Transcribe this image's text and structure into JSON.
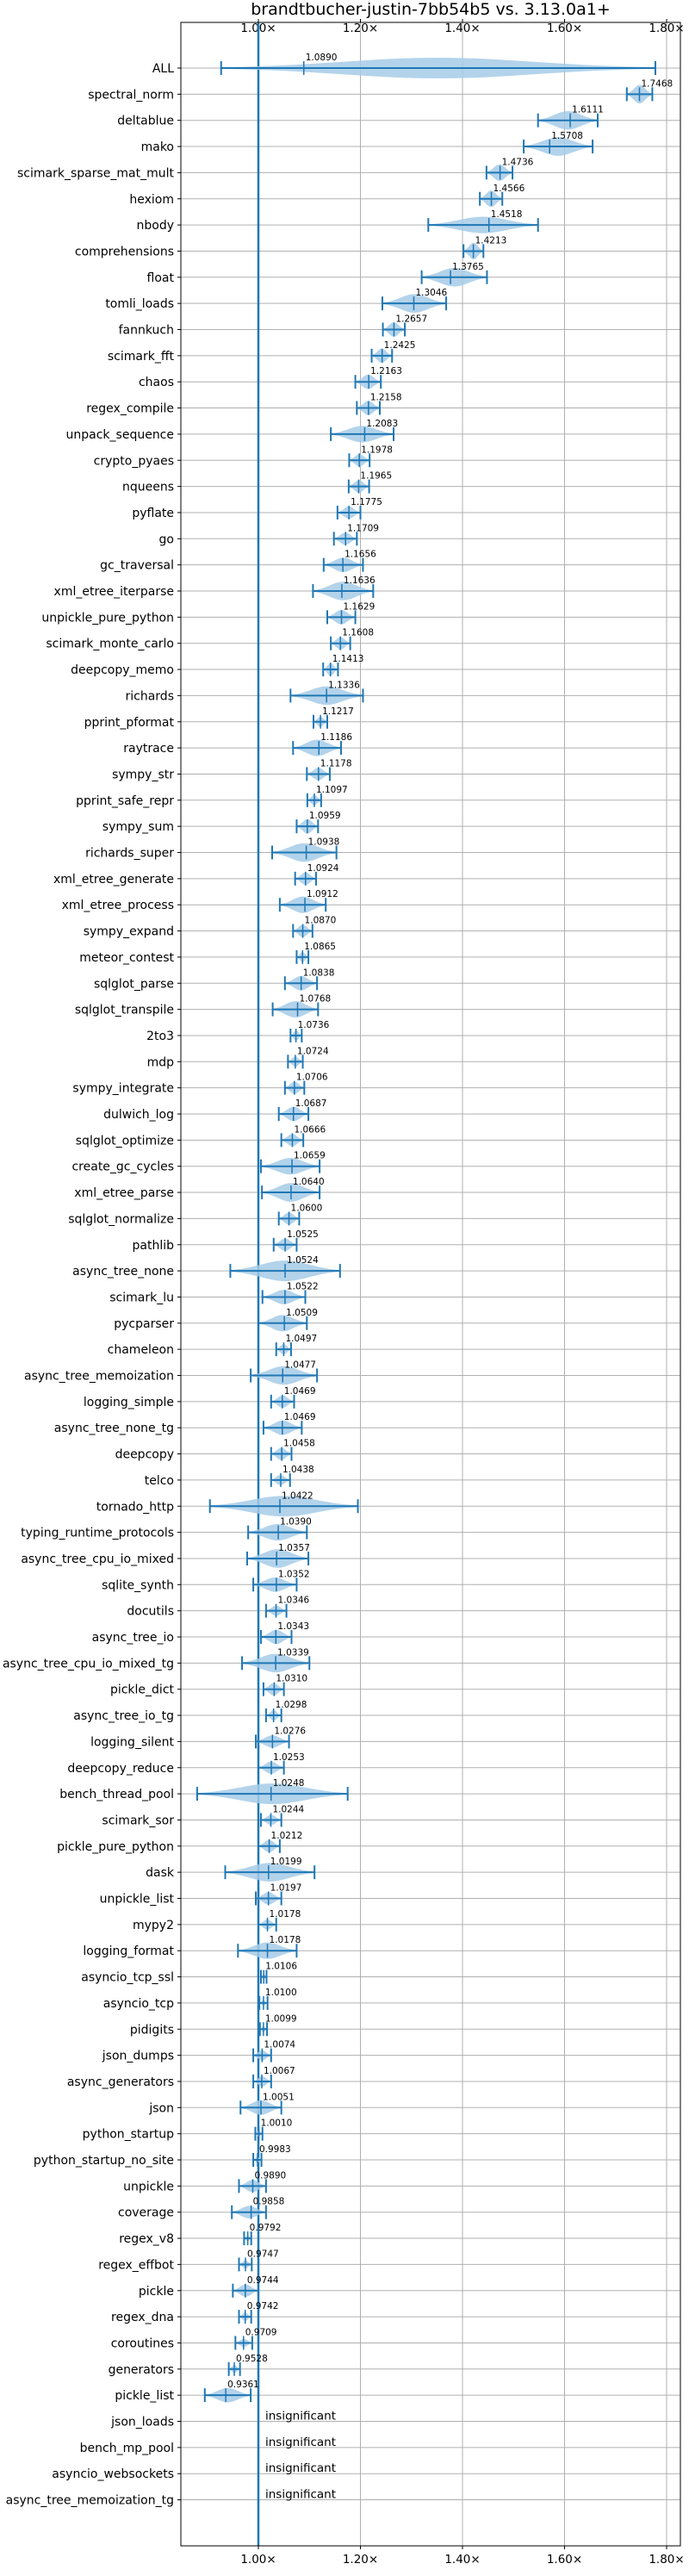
{
  "chart_data": {
    "type": "violin",
    "title": "brandtbucher-justin-7bb54b5 vs. 3.13.0a1+",
    "xlabel": "",
    "ylabel": "",
    "xlim": [
      0.917,
      1.82
    ],
    "xticks": [
      1.0,
      1.2,
      1.4,
      1.6,
      1.8
    ],
    "xtick_labels": [
      "1.00×",
      "1.20×",
      "1.40×",
      "1.60×",
      "1.80×"
    ],
    "reference_line": 1.0,
    "grid": true,
    "colors": {
      "body": "#a6cbe8",
      "line": "#1f77b4",
      "ref": "#1f77b4",
      "grid": "#b0b0b0"
    },
    "insignificant_label": "insignificant",
    "benchmarks": [
      {
        "name": "ALL",
        "value": 1.089,
        "label": "1.0890",
        "lo": 0.927,
        "hi": 1.778,
        "width": 1.0
      },
      {
        "name": "spectral_norm",
        "value": 1.7468,
        "label": "1.7468",
        "lo": 1.722,
        "hi": 1.772,
        "width": 0.9
      },
      {
        "name": "deltablue",
        "value": 1.6111,
        "label": "1.6111",
        "lo": 1.548,
        "hi": 1.665,
        "width": 0.9
      },
      {
        "name": "mako",
        "value": 1.5708,
        "label": "1.5708",
        "lo": 1.52,
        "hi": 1.655,
        "width": 0.9
      },
      {
        "name": "scimark_sparse_mat_mult",
        "value": 1.4736,
        "label": "1.4736",
        "lo": 1.447,
        "hi": 1.498,
        "width": 0.8
      },
      {
        "name": "hexiom",
        "value": 1.4566,
        "label": "1.4566",
        "lo": 1.434,
        "hi": 1.478,
        "width": 0.8
      },
      {
        "name": "nbody",
        "value": 1.4518,
        "label": "1.4518",
        "lo": 1.333,
        "hi": 1.548,
        "width": 0.8
      },
      {
        "name": "comprehensions",
        "value": 1.4213,
        "label": "1.4213",
        "lo": 1.402,
        "hi": 1.441,
        "width": 0.8
      },
      {
        "name": "float",
        "value": 1.3765,
        "label": "1.3765",
        "lo": 1.32,
        "hi": 1.448,
        "width": 0.9
      },
      {
        "name": "tomli_loads",
        "value": 1.3046,
        "label": "1.3046",
        "lo": 1.243,
        "hi": 1.368,
        "width": 0.9
      },
      {
        "name": "fannkuch",
        "value": 1.2657,
        "label": "1.2657",
        "lo": 1.244,
        "hi": 1.287,
        "width": 0.7
      },
      {
        "name": "scimark_fft",
        "value": 1.2425,
        "label": "1.2425",
        "lo": 1.222,
        "hi": 1.262,
        "width": 0.7
      },
      {
        "name": "chaos",
        "value": 1.2163,
        "label": "1.2163",
        "lo": 1.19,
        "hi": 1.24,
        "width": 0.7
      },
      {
        "name": "regex_compile",
        "value": 1.2158,
        "label": "1.2158",
        "lo": 1.193,
        "hi": 1.238,
        "width": 0.7
      },
      {
        "name": "unpack_sequence",
        "value": 1.2083,
        "label": "1.2083",
        "lo": 1.142,
        "hi": 1.265,
        "width": 0.8
      },
      {
        "name": "crypto_pyaes",
        "value": 1.1978,
        "label": "1.1978",
        "lo": 1.178,
        "hi": 1.218,
        "width": 0.6
      },
      {
        "name": "nqueens",
        "value": 1.1965,
        "label": "1.1965",
        "lo": 1.177,
        "hi": 1.217,
        "width": 0.6
      },
      {
        "name": "pyflate",
        "value": 1.1775,
        "label": "1.1775",
        "lo": 1.155,
        "hi": 1.2,
        "width": 0.6
      },
      {
        "name": "go",
        "value": 1.1709,
        "label": "1.1709",
        "lo": 1.148,
        "hi": 1.193,
        "width": 0.6
      },
      {
        "name": "gc_traversal",
        "value": 1.1656,
        "label": "1.1656",
        "lo": 1.128,
        "hi": 1.205,
        "width": 0.7
      },
      {
        "name": "xml_etree_iterparse",
        "value": 1.1636,
        "label": "1.1636",
        "lo": 1.107,
        "hi": 1.225,
        "width": 0.9
      },
      {
        "name": "unpickle_pure_python",
        "value": 1.1629,
        "label": "1.1629",
        "lo": 1.135,
        "hi": 1.19,
        "width": 0.7
      },
      {
        "name": "scimark_monte_carlo",
        "value": 1.1608,
        "label": "1.1608",
        "lo": 1.142,
        "hi": 1.18,
        "width": 0.6
      },
      {
        "name": "deepcopy_memo",
        "value": 1.1413,
        "label": "1.1413",
        "lo": 1.127,
        "hi": 1.156,
        "width": 0.6
      },
      {
        "name": "richards",
        "value": 1.1336,
        "label": "1.1336",
        "lo": 1.063,
        "hi": 1.205,
        "width": 0.9
      },
      {
        "name": "pprint_pformat",
        "value": 1.1217,
        "label": "1.1217",
        "lo": 1.108,
        "hi": 1.135,
        "width": 0.5
      },
      {
        "name": "raytrace",
        "value": 1.1186,
        "label": "1.1186",
        "lo": 1.068,
        "hi": 1.162,
        "width": 0.8
      },
      {
        "name": "sympy_str",
        "value": 1.1178,
        "label": "1.1178",
        "lo": 1.095,
        "hi": 1.14,
        "width": 0.6
      },
      {
        "name": "pprint_safe_repr",
        "value": 1.1097,
        "label": "1.1097",
        "lo": 1.096,
        "hi": 1.123,
        "width": 0.5
      },
      {
        "name": "sympy_sum",
        "value": 1.0959,
        "label": "1.0959",
        "lo": 1.075,
        "hi": 1.117,
        "width": 0.7
      },
      {
        "name": "richards_super",
        "value": 1.0938,
        "label": "1.0938",
        "lo": 1.027,
        "hi": 1.153,
        "width": 0.9
      },
      {
        "name": "xml_etree_generate",
        "value": 1.0924,
        "label": "1.0924",
        "lo": 1.072,
        "hi": 1.113,
        "width": 0.6
      },
      {
        "name": "xml_etree_process",
        "value": 1.0912,
        "label": "1.0912",
        "lo": 1.042,
        "hi": 1.132,
        "width": 0.8
      },
      {
        "name": "sympy_expand",
        "value": 1.087,
        "label": "1.0870",
        "lo": 1.068,
        "hi": 1.106,
        "width": 0.6
      },
      {
        "name": "meteor_contest",
        "value": 1.0865,
        "label": "1.0865",
        "lo": 1.075,
        "hi": 1.098,
        "width": 0.5
      },
      {
        "name": "sqlglot_parse",
        "value": 1.0838,
        "label": "1.0838",
        "lo": 1.052,
        "hi": 1.115,
        "width": 0.7
      },
      {
        "name": "sqlglot_transpile",
        "value": 1.0768,
        "label": "1.0768",
        "lo": 1.028,
        "hi": 1.117,
        "width": 0.8
      },
      {
        "name": "2to3",
        "value": 1.0736,
        "label": "1.0736",
        "lo": 1.063,
        "hi": 1.085,
        "width": 0.5
      },
      {
        "name": "mdp",
        "value": 1.0724,
        "label": "1.0724",
        "lo": 1.058,
        "hi": 1.087,
        "width": 0.5
      },
      {
        "name": "sympy_integrate",
        "value": 1.0706,
        "label": "1.0706",
        "lo": 1.052,
        "hi": 1.09,
        "width": 0.6
      },
      {
        "name": "dulwich_log",
        "value": 1.0687,
        "label": "1.0687",
        "lo": 1.04,
        "hi": 1.098,
        "width": 0.7
      },
      {
        "name": "sqlglot_optimize",
        "value": 1.0666,
        "label": "1.0666",
        "lo": 1.045,
        "hi": 1.088,
        "width": 0.6
      },
      {
        "name": "create_gc_cycles",
        "value": 1.0659,
        "label": "1.0659",
        "lo": 1.005,
        "hi": 1.12,
        "width": 0.8
      },
      {
        "name": "xml_etree_parse",
        "value": 1.064,
        "label": "1.0640",
        "lo": 1.007,
        "hi": 1.12,
        "width": 0.9
      },
      {
        "name": "sqlglot_normalize",
        "value": 1.06,
        "label": "1.0600",
        "lo": 1.04,
        "hi": 1.08,
        "width": 0.6
      },
      {
        "name": "pathlib",
        "value": 1.0525,
        "label": "1.0525",
        "lo": 1.03,
        "hi": 1.075,
        "width": 0.6
      },
      {
        "name": "async_tree_none",
        "value": 1.0524,
        "label": "1.0524",
        "lo": 0.945,
        "hi": 1.16,
        "width": 1.0
      },
      {
        "name": "scimark_lu",
        "value": 1.0522,
        "label": "1.0522",
        "lo": 1.008,
        "hi": 1.092,
        "width": 0.7
      },
      {
        "name": "pycparser",
        "value": 1.0509,
        "label": "1.0509",
        "lo": 1.0,
        "hi": 1.095,
        "width": 0.8
      },
      {
        "name": "chameleon",
        "value": 1.0497,
        "label": "1.0497",
        "lo": 1.035,
        "hi": 1.064,
        "width": 0.5
      },
      {
        "name": "async_tree_memoization",
        "value": 1.0477,
        "label": "1.0477",
        "lo": 0.985,
        "hi": 1.115,
        "width": 0.9
      },
      {
        "name": "logging_simple",
        "value": 1.0469,
        "label": "1.0469",
        "lo": 1.025,
        "hi": 1.07,
        "width": 0.6
      },
      {
        "name": "async_tree_none_tg",
        "value": 1.0469,
        "label": "1.0469",
        "lo": 1.01,
        "hi": 1.085,
        "width": 0.7
      },
      {
        "name": "deepcopy",
        "value": 1.0458,
        "label": "1.0458",
        "lo": 1.025,
        "hi": 1.065,
        "width": 0.6
      },
      {
        "name": "telco",
        "value": 1.0438,
        "label": "1.0438",
        "lo": 1.025,
        "hi": 1.062,
        "width": 0.5
      },
      {
        "name": "tornado_http",
        "value": 1.0422,
        "label": "1.0422",
        "lo": 0.905,
        "hi": 1.195,
        "width": 1.0
      },
      {
        "name": "typing_runtime_protocols",
        "value": 1.039,
        "label": "1.0390",
        "lo": 0.98,
        "hi": 1.095,
        "width": 0.8
      },
      {
        "name": "async_tree_cpu_io_mixed",
        "value": 1.0357,
        "label": "1.0357",
        "lo": 0.978,
        "hi": 1.098,
        "width": 0.9
      },
      {
        "name": "sqlite_synth",
        "value": 1.0352,
        "label": "1.0352",
        "lo": 0.99,
        "hi": 1.075,
        "width": 0.7
      },
      {
        "name": "docutils",
        "value": 1.0346,
        "label": "1.0346",
        "lo": 1.015,
        "hi": 1.055,
        "width": 0.5
      },
      {
        "name": "async_tree_io",
        "value": 1.0343,
        "label": "1.0343",
        "lo": 1.005,
        "hi": 1.065,
        "width": 0.7
      },
      {
        "name": "async_tree_cpu_io_mixed_tg",
        "value": 1.0339,
        "label": "1.0339",
        "lo": 0.968,
        "hi": 1.1,
        "width": 0.9
      },
      {
        "name": "pickle_dict",
        "value": 1.031,
        "label": "1.0310",
        "lo": 1.01,
        "hi": 1.05,
        "width": 0.6
      },
      {
        "name": "async_tree_io_tg",
        "value": 1.0298,
        "label": "1.0298",
        "lo": 1.015,
        "hi": 1.045,
        "width": 0.5
      },
      {
        "name": "logging_silent",
        "value": 1.0276,
        "label": "1.0276",
        "lo": 0.995,
        "hi": 1.06,
        "width": 0.6
      },
      {
        "name": "deepcopy_reduce",
        "value": 1.0253,
        "label": "1.0253",
        "lo": 1.0,
        "hi": 1.05,
        "width": 0.6
      },
      {
        "name": "bench_thread_pool",
        "value": 1.0248,
        "label": "1.0248",
        "lo": 0.88,
        "hi": 1.175,
        "width": 1.0
      },
      {
        "name": "scimark_sor",
        "value": 1.0244,
        "label": "1.0244",
        "lo": 1.005,
        "hi": 1.045,
        "width": 0.5
      },
      {
        "name": "pickle_pure_python",
        "value": 1.0212,
        "label": "1.0212",
        "lo": 1.0,
        "hi": 1.042,
        "width": 0.6
      },
      {
        "name": "dask",
        "value": 1.0199,
        "label": "1.0199",
        "lo": 0.935,
        "hi": 1.11,
        "width": 0.9
      },
      {
        "name": "unpickle_list",
        "value": 1.0197,
        "label": "1.0197",
        "lo": 0.995,
        "hi": 1.045,
        "width": 0.6
      },
      {
        "name": "mypy2",
        "value": 1.0178,
        "label": "1.0178",
        "lo": 1.0,
        "hi": 1.035,
        "width": 0.5
      },
      {
        "name": "logging_format",
        "value": 1.0178,
        "label": "1.0178",
        "lo": 0.96,
        "hi": 1.075,
        "width": 0.8
      },
      {
        "name": "asyncio_tcp_ssl",
        "value": 1.0106,
        "label": "1.0106",
        "lo": 1.005,
        "hi": 1.016,
        "width": 0.3
      },
      {
        "name": "asyncio_tcp",
        "value": 1.01,
        "label": "1.0100",
        "lo": 1.002,
        "hi": 1.018,
        "width": 0.3
      },
      {
        "name": "pidigits",
        "value": 1.0099,
        "label": "1.0099",
        "lo": 1.003,
        "hi": 1.017,
        "width": 0.3
      },
      {
        "name": "json_dumps",
        "value": 1.0074,
        "label": "1.0074",
        "lo": 0.99,
        "hi": 1.025,
        "width": 0.5
      },
      {
        "name": "async_generators",
        "value": 1.0067,
        "label": "1.0067",
        "lo": 0.99,
        "hi": 1.025,
        "width": 0.5
      },
      {
        "name": "json",
        "value": 1.0051,
        "label": "1.0051",
        "lo": 0.965,
        "hi": 1.045,
        "width": 0.7
      },
      {
        "name": "python_startup",
        "value": 1.001,
        "label": "1.0010",
        "lo": 0.994,
        "hi": 1.008,
        "width": 0.3
      },
      {
        "name": "python_startup_no_site",
        "value": 0.9983,
        "label": "0.9983",
        "lo": 0.99,
        "hi": 1.006,
        "width": 0.3
      },
      {
        "name": "unpickle",
        "value": 0.989,
        "label": "0.9890",
        "lo": 0.962,
        "hi": 1.015,
        "width": 0.6
      },
      {
        "name": "coverage",
        "value": 0.9858,
        "label": "0.9858",
        "lo": 0.948,
        "hi": 1.015,
        "width": 0.6
      },
      {
        "name": "regex_v8",
        "value": 0.9792,
        "label": "0.9792",
        "lo": 0.972,
        "hi": 0.986,
        "width": 0.3
      },
      {
        "name": "regex_effbot",
        "value": 0.9747,
        "label": "0.9747",
        "lo": 0.962,
        "hi": 0.987,
        "width": 0.4
      },
      {
        "name": "pickle",
        "value": 0.9744,
        "label": "0.9744",
        "lo": 0.95,
        "hi": 1.0,
        "width": 0.6
      },
      {
        "name": "regex_dna",
        "value": 0.9742,
        "label": "0.9742",
        "lo": 0.962,
        "hi": 0.986,
        "width": 0.4
      },
      {
        "name": "coroutines",
        "value": 0.9709,
        "label": "0.9709",
        "lo": 0.955,
        "hi": 0.988,
        "width": 0.4
      },
      {
        "name": "generators",
        "value": 0.9528,
        "label": "0.9528",
        "lo": 0.942,
        "hi": 0.964,
        "width": 0.4
      },
      {
        "name": "pickle_list",
        "value": 0.9361,
        "label": "0.9361",
        "lo": 0.895,
        "hi": 0.985,
        "width": 0.7
      },
      {
        "name": "json_loads",
        "value": null,
        "label": "insignificant"
      },
      {
        "name": "bench_mp_pool",
        "value": null,
        "label": "insignificant"
      },
      {
        "name": "asyncio_websockets",
        "value": null,
        "label": "insignificant"
      },
      {
        "name": "async_tree_memoization_tg",
        "value": null,
        "label": "insignificant"
      }
    ]
  }
}
